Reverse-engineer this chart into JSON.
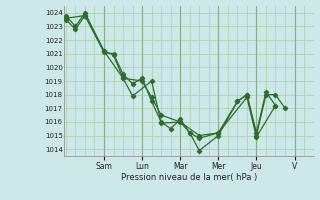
{
  "xlabel": "Pression niveau de la mer( hPa )",
  "bg_color": "#cce8e8",
  "line_color": "#2d6e2d",
  "grid_color": "#aaccaa",
  "grid_major_color": "#88aa88",
  "ylim": [
    1013.5,
    1024.5
  ],
  "yticks": [
    1014,
    1015,
    1016,
    1017,
    1018,
    1019,
    1020,
    1021,
    1022,
    1023,
    1024
  ],
  "day_labels": [
    "Sam",
    "Lun",
    "Mar",
    "Mer",
    "Jeu",
    "V"
  ],
  "day_positions": [
    2.0,
    4.0,
    6.0,
    8.0,
    10.0,
    12.0
  ],
  "xlim": [
    -0.1,
    13.0
  ],
  "lines": [
    {
      "x": [
        0.0,
        0.5,
        1.0,
        2.0,
        2.5,
        3.0,
        3.5,
        4.0,
        4.5,
        5.0,
        5.5,
        6.0,
        6.5,
        7.0,
        8.0,
        9.0,
        9.5,
        10.0,
        10.5,
        11.0,
        11.5
      ],
      "y": [
        1023.5,
        1022.8,
        1023.8,
        1021.1,
        1021.0,
        1019.5,
        1018.8,
        1019.2,
        1017.5,
        1016.0,
        1015.5,
        1016.2,
        1015.2,
        1013.9,
        1015.0,
        1017.5,
        1018.0,
        1015.0,
        1018.0,
        1018.0,
        1017.0
      ]
    },
    {
      "x": [
        0.0,
        0.5,
        1.0,
        2.0,
        2.5,
        3.0,
        4.0,
        4.5,
        5.0,
        6.0,
        6.5,
        7.0,
        8.0,
        9.0,
        9.5,
        10.0,
        10.5,
        11.0
      ],
      "y": [
        1023.8,
        1023.0,
        1024.0,
        1021.2,
        1020.9,
        1019.2,
        1019.0,
        1017.8,
        1016.5,
        1016.0,
        1015.2,
        1014.8,
        1015.2,
        1017.5,
        1018.0,
        1015.2,
        1018.2,
        1017.2
      ]
    },
    {
      "x": [
        0.0,
        1.0,
        2.0,
        3.0,
        3.5,
        4.5,
        5.0,
        6.0,
        7.0,
        8.0,
        9.5,
        10.0,
        11.0
      ],
      "y": [
        1023.6,
        1023.8,
        1021.2,
        1019.2,
        1017.9,
        1019.0,
        1015.9,
        1016.0,
        1015.0,
        1015.2,
        1017.8,
        1014.9,
        1017.2
      ]
    }
  ]
}
